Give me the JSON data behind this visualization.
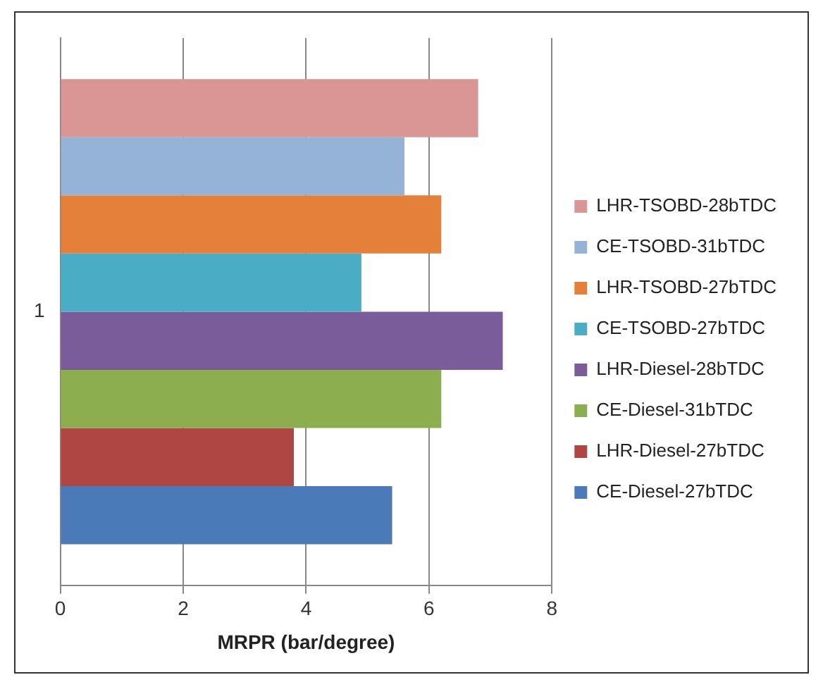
{
  "chart_data": {
    "type": "bar",
    "orientation": "horizontal",
    "xlabel": "MRPR (bar/degree)",
    "categories": [
      "1"
    ],
    "series": [
      {
        "name": "LHR-TSOBD-28bTDC",
        "color": "#d99694",
        "values": [
          6.8
        ]
      },
      {
        "name": "CE-TSOBD-31bTDC",
        "color": "#95b3d7",
        "values": [
          5.6
        ]
      },
      {
        "name": "LHR-TSOBD-27bTDC",
        "color": "#e4803a",
        "values": [
          6.2
        ]
      },
      {
        "name": "CE-TSOBD-27bTDC",
        "color": "#4bacc6",
        "values": [
          4.9
        ]
      },
      {
        "name": "LHR-Diesel-28bTDC",
        "color": "#7b5c9a",
        "values": [
          7.2
        ]
      },
      {
        "name": "CE-Diesel-31bTDC",
        "color": "#8cae4e",
        "values": [
          6.2
        ]
      },
      {
        "name": "LHR-Diesel-27bTDC",
        "color": "#b04643",
        "values": [
          3.8
        ]
      },
      {
        "name": "CE-Diesel-27bTDC",
        "color": "#4a7ab8",
        "values": [
          5.4
        ]
      }
    ],
    "xlim": [
      0,
      8
    ],
    "xticks": [
      0,
      2,
      4,
      6,
      8
    ],
    "grid": "x",
    "legend": "right"
  }
}
